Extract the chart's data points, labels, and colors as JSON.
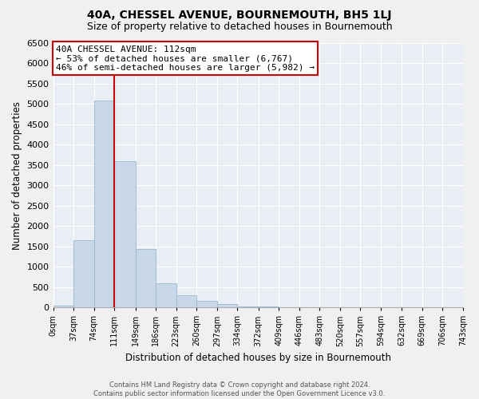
{
  "title": "40A, CHESSEL AVENUE, BOURNEMOUTH, BH5 1LJ",
  "subtitle": "Size of property relative to detached houses in Bournemouth",
  "xlabel": "Distribution of detached houses by size in Bournemouth",
  "ylabel": "Number of detached properties",
  "bin_edges": [
    0,
    37,
    74,
    111,
    149,
    186,
    223,
    260,
    297,
    334,
    372,
    409,
    446,
    483,
    520,
    557,
    594,
    632,
    669,
    706,
    743
  ],
  "bin_labels": [
    "0sqm",
    "37sqm",
    "74sqm",
    "111sqm",
    "149sqm",
    "186sqm",
    "223sqm",
    "260sqm",
    "297sqm",
    "334sqm",
    "372sqm",
    "409sqm",
    "446sqm",
    "483sqm",
    "520sqm",
    "557sqm",
    "594sqm",
    "632sqm",
    "669sqm",
    "706sqm",
    "743sqm"
  ],
  "counts": [
    50,
    1650,
    5090,
    3600,
    1430,
    590,
    300,
    150,
    80,
    30,
    15,
    10,
    5,
    0,
    0,
    0,
    0,
    0,
    0,
    0
  ],
  "bar_color": "#c8d8e8",
  "bar_edge_color": "#9ab8cc",
  "vline_x": 111,
  "vline_color": "#cc0000",
  "annotation_title": "40A CHESSEL AVENUE: 112sqm",
  "annotation_line1": "← 53% of detached houses are smaller (6,767)",
  "annotation_line2": "46% of semi-detached houses are larger (5,982) →",
  "annotation_box_facecolor": "#ffffff",
  "annotation_box_edgecolor": "#cc0000",
  "ylim": [
    0,
    6500
  ],
  "yticks": [
    0,
    500,
    1000,
    1500,
    2000,
    2500,
    3000,
    3500,
    4000,
    4500,
    5000,
    5500,
    6000,
    6500
  ],
  "footer_line1": "Contains HM Land Registry data © Crown copyright and database right 2024.",
  "footer_line2": "Contains public sector information licensed under the Open Government Licence v3.0.",
  "plot_bg_color": "#e8eef4",
  "fig_bg_color": "#f0f0f0",
  "grid_color": "#ffffff",
  "title_fontsize": 10,
  "subtitle_fontsize": 9
}
